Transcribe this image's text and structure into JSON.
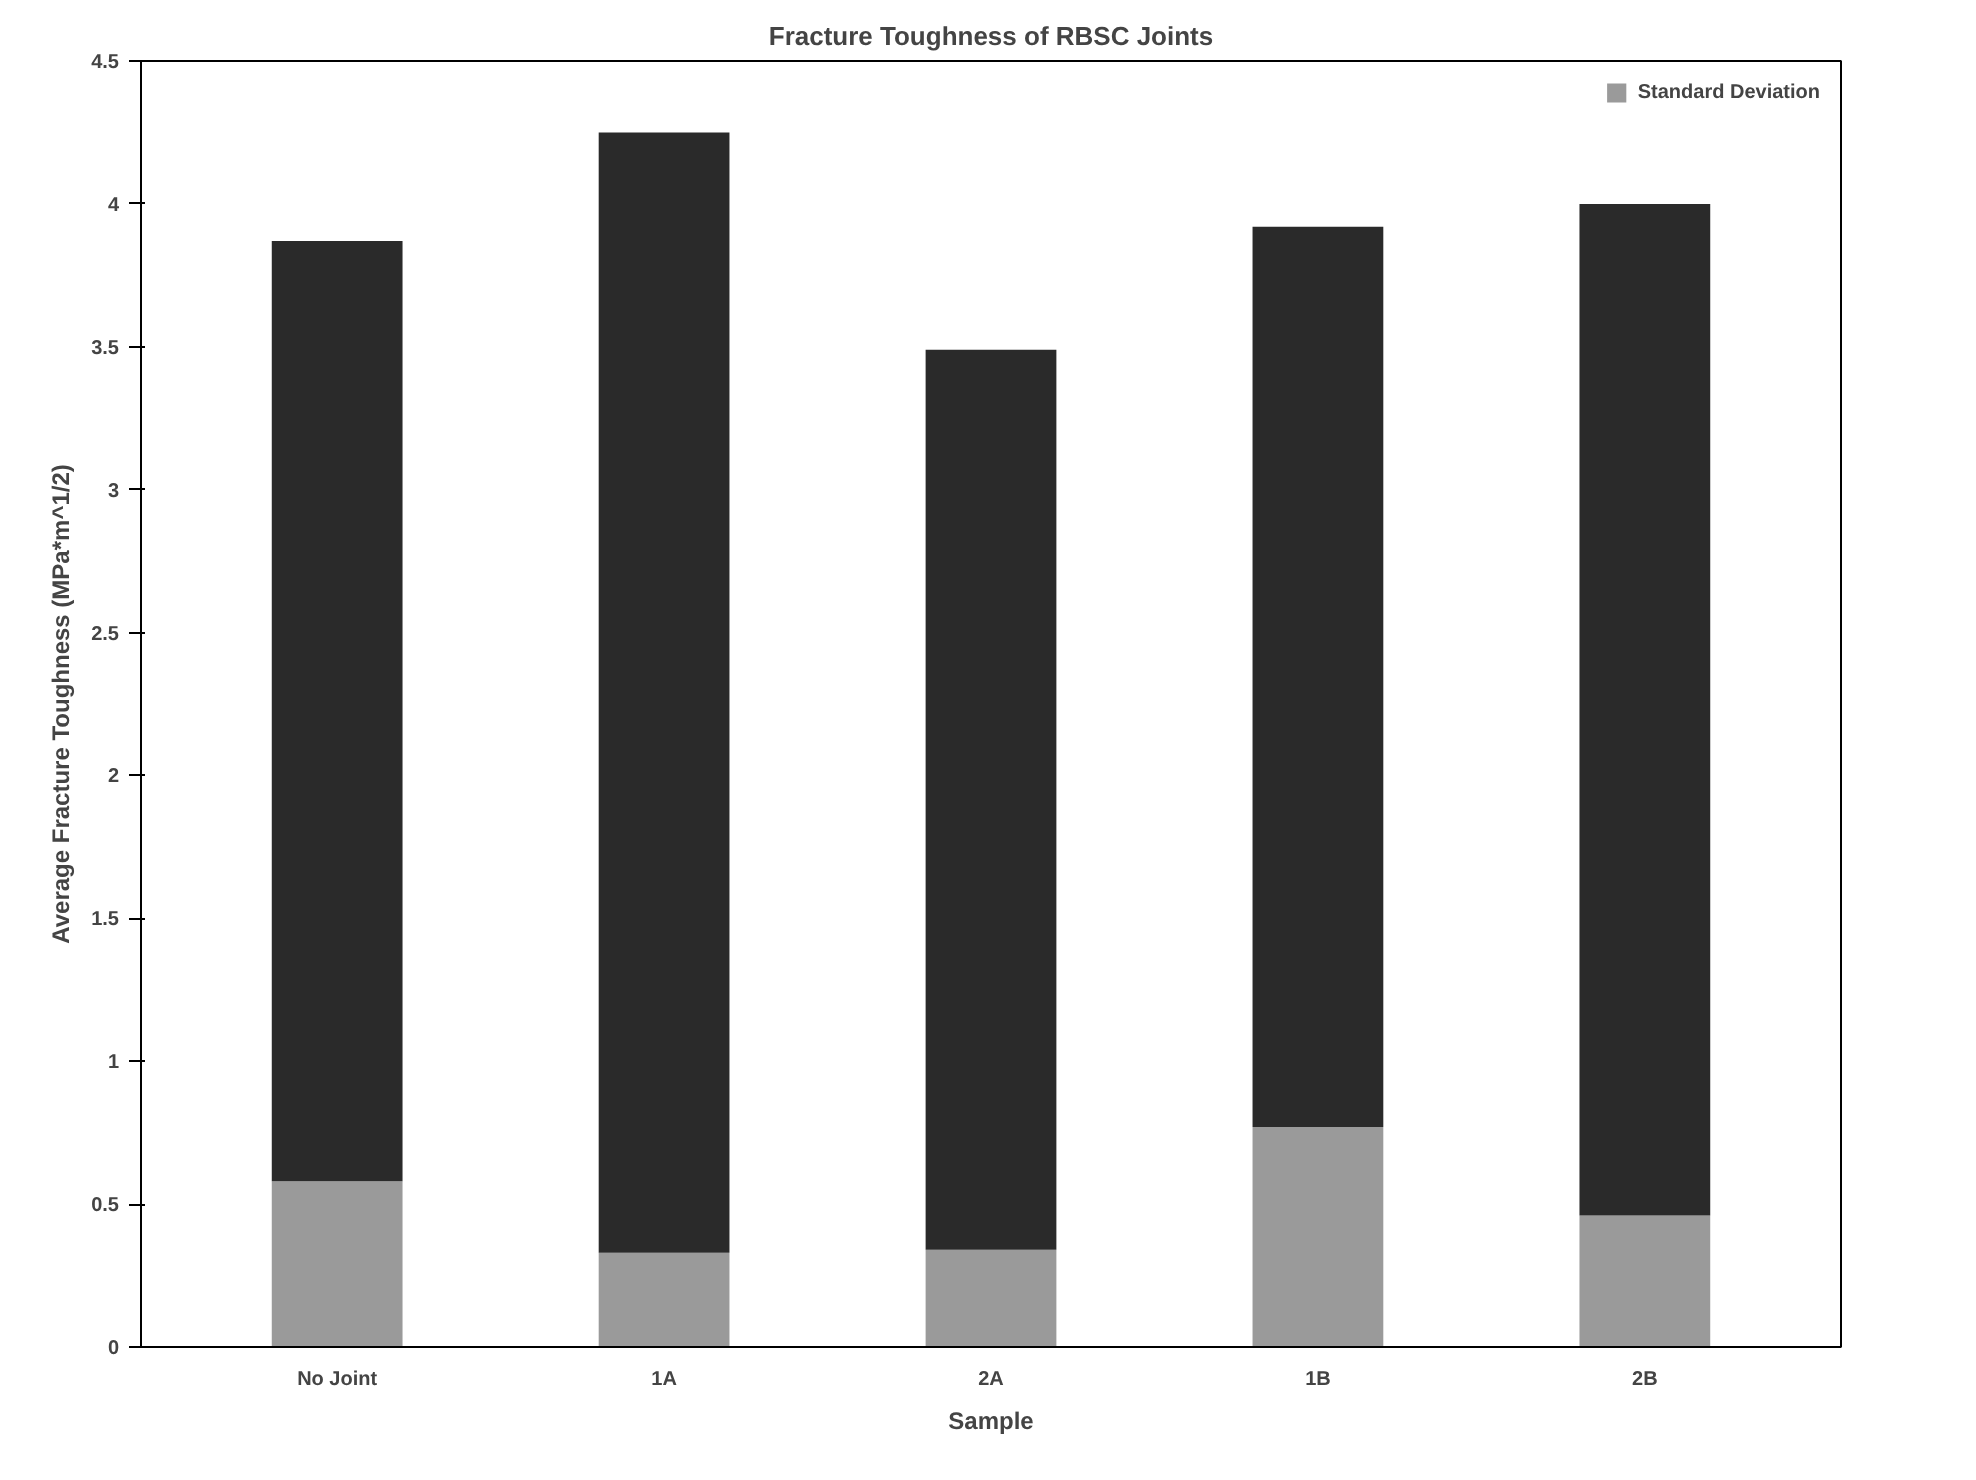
{
  "chart_data": {
    "type": "bar",
    "title": "Fracture Toughness of RBSC Joints",
    "xlabel": "Sample",
    "ylabel": "Average Fracture Toughness (MPa*m^1/2)",
    "categories": [
      "No Joint",
      "1A",
      "2A",
      "1B",
      "2B"
    ],
    "stacked": true,
    "series": [
      {
        "name": "Standard Deviation",
        "color": "#9a9a9a",
        "values": [
          0.58,
          0.33,
          0.34,
          0.77,
          0.46
        ]
      },
      {
        "color": "#2a2a2a",
        "values": [
          3.29,
          3.92,
          3.15,
          3.15,
          3.54
        ]
      }
    ],
    "ylim": [
      0,
      4.5
    ],
    "yticks": [
      0,
      0.5,
      1,
      1.5,
      2,
      2.5,
      3,
      3.5,
      4,
      4.5
    ],
    "grid": false,
    "legend": "top right"
  }
}
